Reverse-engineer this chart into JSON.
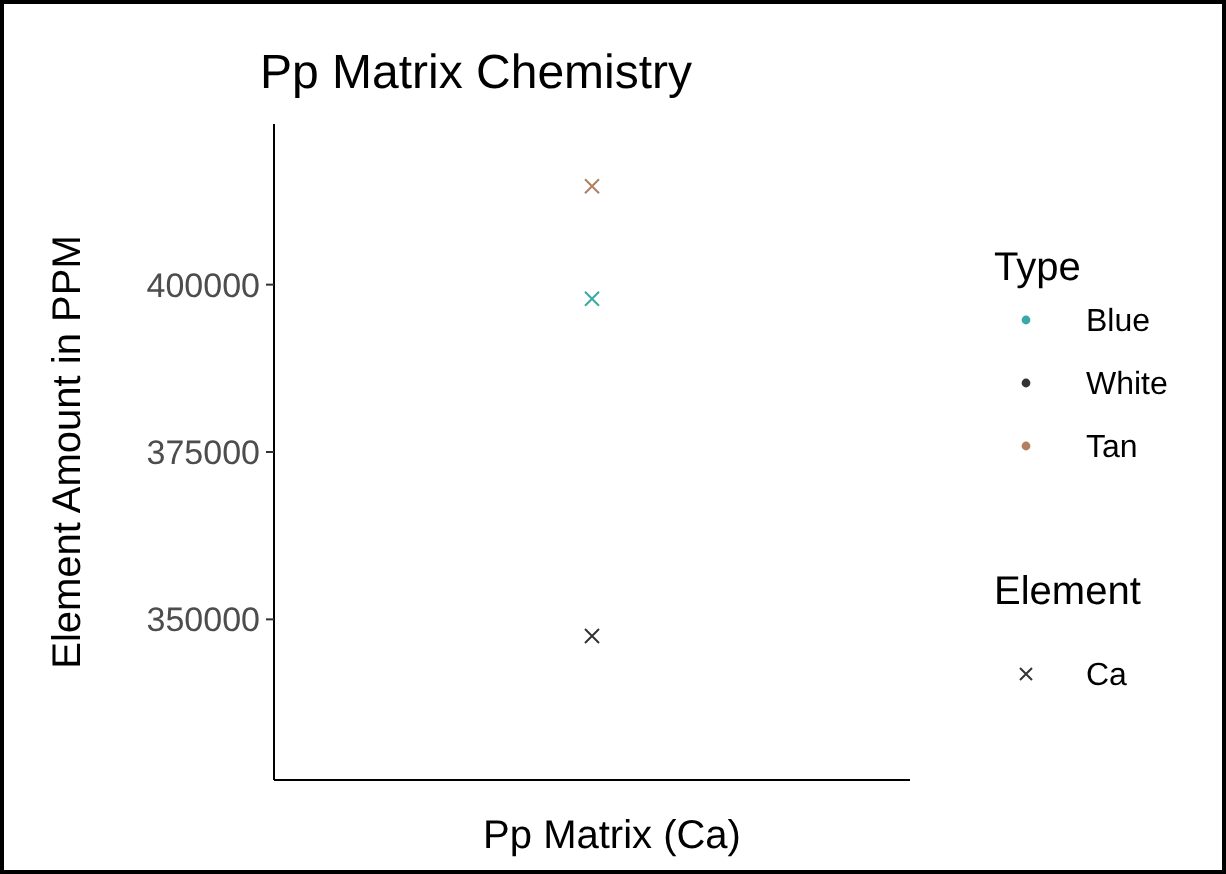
{
  "chart_data": {
    "type": "scatter",
    "title": "Pp Matrix Chemistry",
    "xlabel": "Pp Matrix (Ca)",
    "ylabel": "Element Amount in PPM",
    "legend_title": "Type",
    "categories": [
      null
    ],
    "series": [
      {
        "name": "Blue",
        "color": "#3aa8a8",
        "values": [
          397900
        ]
      },
      {
        "name": "White",
        "color": "#333333",
        "values": [
          347500
        ]
      },
      {
        "name": "Tan",
        "color": "#b08060",
        "values": [
          414700
        ]
      }
    ],
    "ylim": [
      326000,
      424000
    ],
    "yticks": [
      350000,
      375000,
      400000
    ],
    "tick_labels": "y",
    "marker": "cross",
    "legend": "right",
    "grid": false,
    "annotations": [
      "Element",
      "Ca"
    ]
  }
}
